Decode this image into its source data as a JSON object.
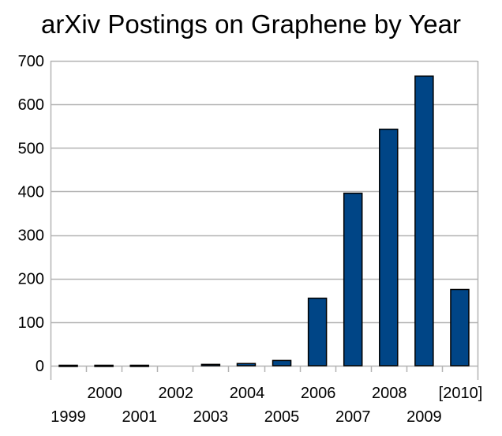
{
  "chart_data": {
    "type": "bar",
    "title": "arXiv Postings on Graphene by Year",
    "xlabel": "",
    "ylabel": "",
    "categories": [
      "1999",
      "2000",
      "2001",
      "2002",
      "2003",
      "2004",
      "2005",
      "2006",
      "2007",
      "2008",
      "2009",
      "[2010]"
    ],
    "values": [
      1,
      1,
      1,
      0,
      3,
      5,
      12,
      155,
      396,
      543,
      665,
      175
    ],
    "ylim": [
      0,
      700
    ],
    "yticks": [
      0,
      100,
      200,
      300,
      400,
      500,
      600,
      700
    ],
    "grid": true,
    "legend": "none",
    "colors": {
      "bar_fill": "#004586",
      "bar_stroke": "#000000",
      "grid": "#b3b3b3",
      "axis": "#b3b3b3"
    }
  }
}
